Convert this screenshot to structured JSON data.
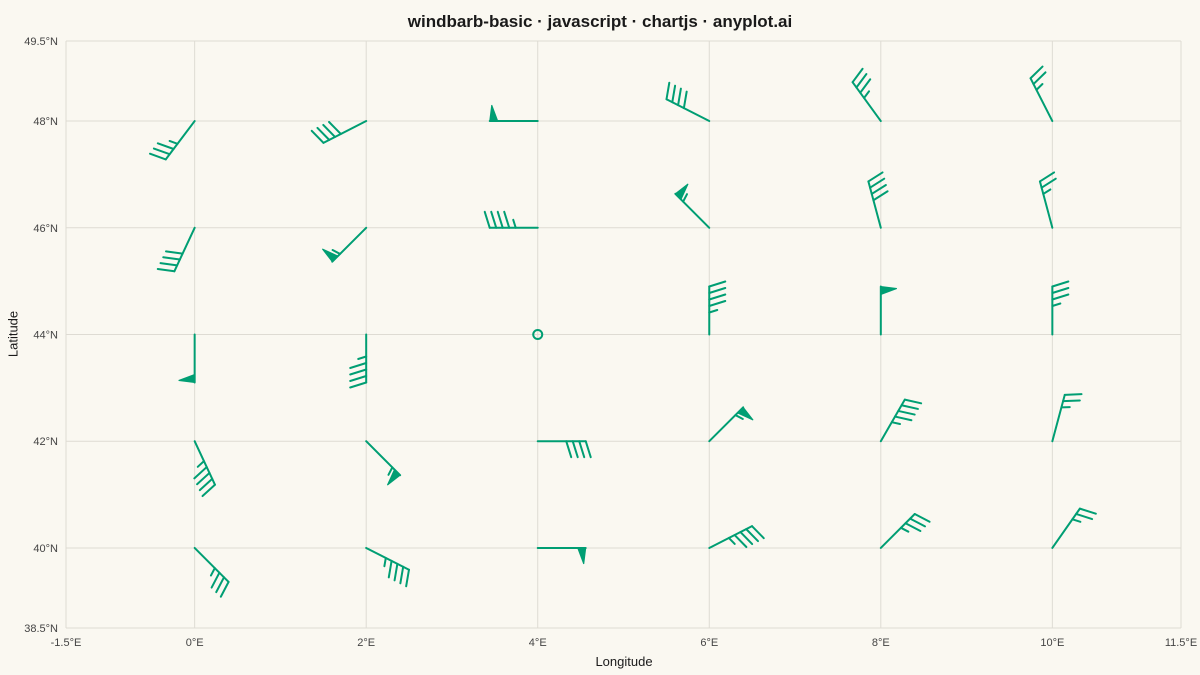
{
  "chart_data": {
    "type": "windbarb",
    "title": "windbarb-basic · javascript · chartjs · anyplot.ai",
    "xlabel": "Longitude",
    "ylabel": "Latitude",
    "xlim": [
      -1.5,
      11.5
    ],
    "ylim": [
      38.5,
      49.5
    ],
    "x_ticks": [
      {
        "value": -1.5,
        "label": "-1.5°E"
      },
      {
        "value": 0,
        "label": "0°E"
      },
      {
        "value": 2,
        "label": "2°E"
      },
      {
        "value": 4,
        "label": "4°E"
      },
      {
        "value": 6,
        "label": "6°E"
      },
      {
        "value": 8,
        "label": "8°E"
      },
      {
        "value": 10,
        "label": "10°E"
      },
      {
        "value": 11.5,
        "label": "11.5°E"
      }
    ],
    "y_ticks": [
      {
        "value": 38.5,
        "label": "38.5°N"
      },
      {
        "value": 40,
        "label": "40°N"
      },
      {
        "value": 42,
        "label": "42°N"
      },
      {
        "value": 44,
        "label": "44°N"
      },
      {
        "value": 46,
        "label": "46°N"
      },
      {
        "value": 48,
        "label": "48°N"
      },
      {
        "value": 49.5,
        "label": "49.5°N"
      }
    ],
    "grid": true,
    "color": "#009E73",
    "wind_units": "knots",
    "points": [
      {
        "lon": 0,
        "lat": 48,
        "dir": 217,
        "speed": 35
      },
      {
        "lon": 2,
        "lat": 48,
        "dir": 243,
        "speed": 40
      },
      {
        "lon": 4,
        "lat": 48,
        "dir": 270,
        "speed": 50
      },
      {
        "lon": 6,
        "lat": 48,
        "dir": 297,
        "speed": 40
      },
      {
        "lon": 8,
        "lat": 48,
        "dir": 324,
        "speed": 35
      },
      {
        "lon": 10,
        "lat": 48,
        "dir": 333,
        "speed": 25
      },
      {
        "lon": 0,
        "lat": 46,
        "dir": 205,
        "speed": 40
      },
      {
        "lon": 2,
        "lat": 46,
        "dir": 225,
        "speed": 55
      },
      {
        "lon": 4,
        "lat": 46,
        "dir": 270,
        "speed": 45
      },
      {
        "lon": 6,
        "lat": 46,
        "dir": 315,
        "speed": 55
      },
      {
        "lon": 8,
        "lat": 46,
        "dir": 345,
        "speed": 40
      },
      {
        "lon": 10,
        "lat": 46,
        "dir": 345,
        "speed": 25
      },
      {
        "lon": 0,
        "lat": 44,
        "dir": 180,
        "speed": 50
      },
      {
        "lon": 2,
        "lat": 44,
        "dir": 180,
        "speed": 45
      },
      {
        "lon": 4,
        "lat": 44,
        "dir": 0,
        "speed": 0
      },
      {
        "lon": 6,
        "lat": 44,
        "dir": 0,
        "speed": 45
      },
      {
        "lon": 8,
        "lat": 44,
        "dir": 0,
        "speed": 50
      },
      {
        "lon": 10,
        "lat": 44,
        "dir": 0,
        "speed": 35
      },
      {
        "lon": 0,
        "lat": 42,
        "dir": 155,
        "speed": 45
      },
      {
        "lon": 2,
        "lat": 42,
        "dir": 135,
        "speed": 55
      },
      {
        "lon": 4,
        "lat": 42,
        "dir": 90,
        "speed": 40
      },
      {
        "lon": 6,
        "lat": 42,
        "dir": 45,
        "speed": 55
      },
      {
        "lon": 8,
        "lat": 42,
        "dir": 30,
        "speed": 45
      },
      {
        "lon": 10,
        "lat": 42,
        "dir": 15,
        "speed": 25
      },
      {
        "lon": 0,
        "lat": 40,
        "dir": 135,
        "speed": 35
      },
      {
        "lon": 2,
        "lat": 40,
        "dir": 117,
        "speed": 45
      },
      {
        "lon": 4,
        "lat": 40,
        "dir": 90,
        "speed": 50
      },
      {
        "lon": 6,
        "lat": 40,
        "dir": 63,
        "speed": 45
      },
      {
        "lon": 8,
        "lat": 40,
        "dir": 45,
        "speed": 35
      },
      {
        "lon": 10,
        "lat": 40,
        "dir": 35,
        "speed": 25
      }
    ]
  }
}
